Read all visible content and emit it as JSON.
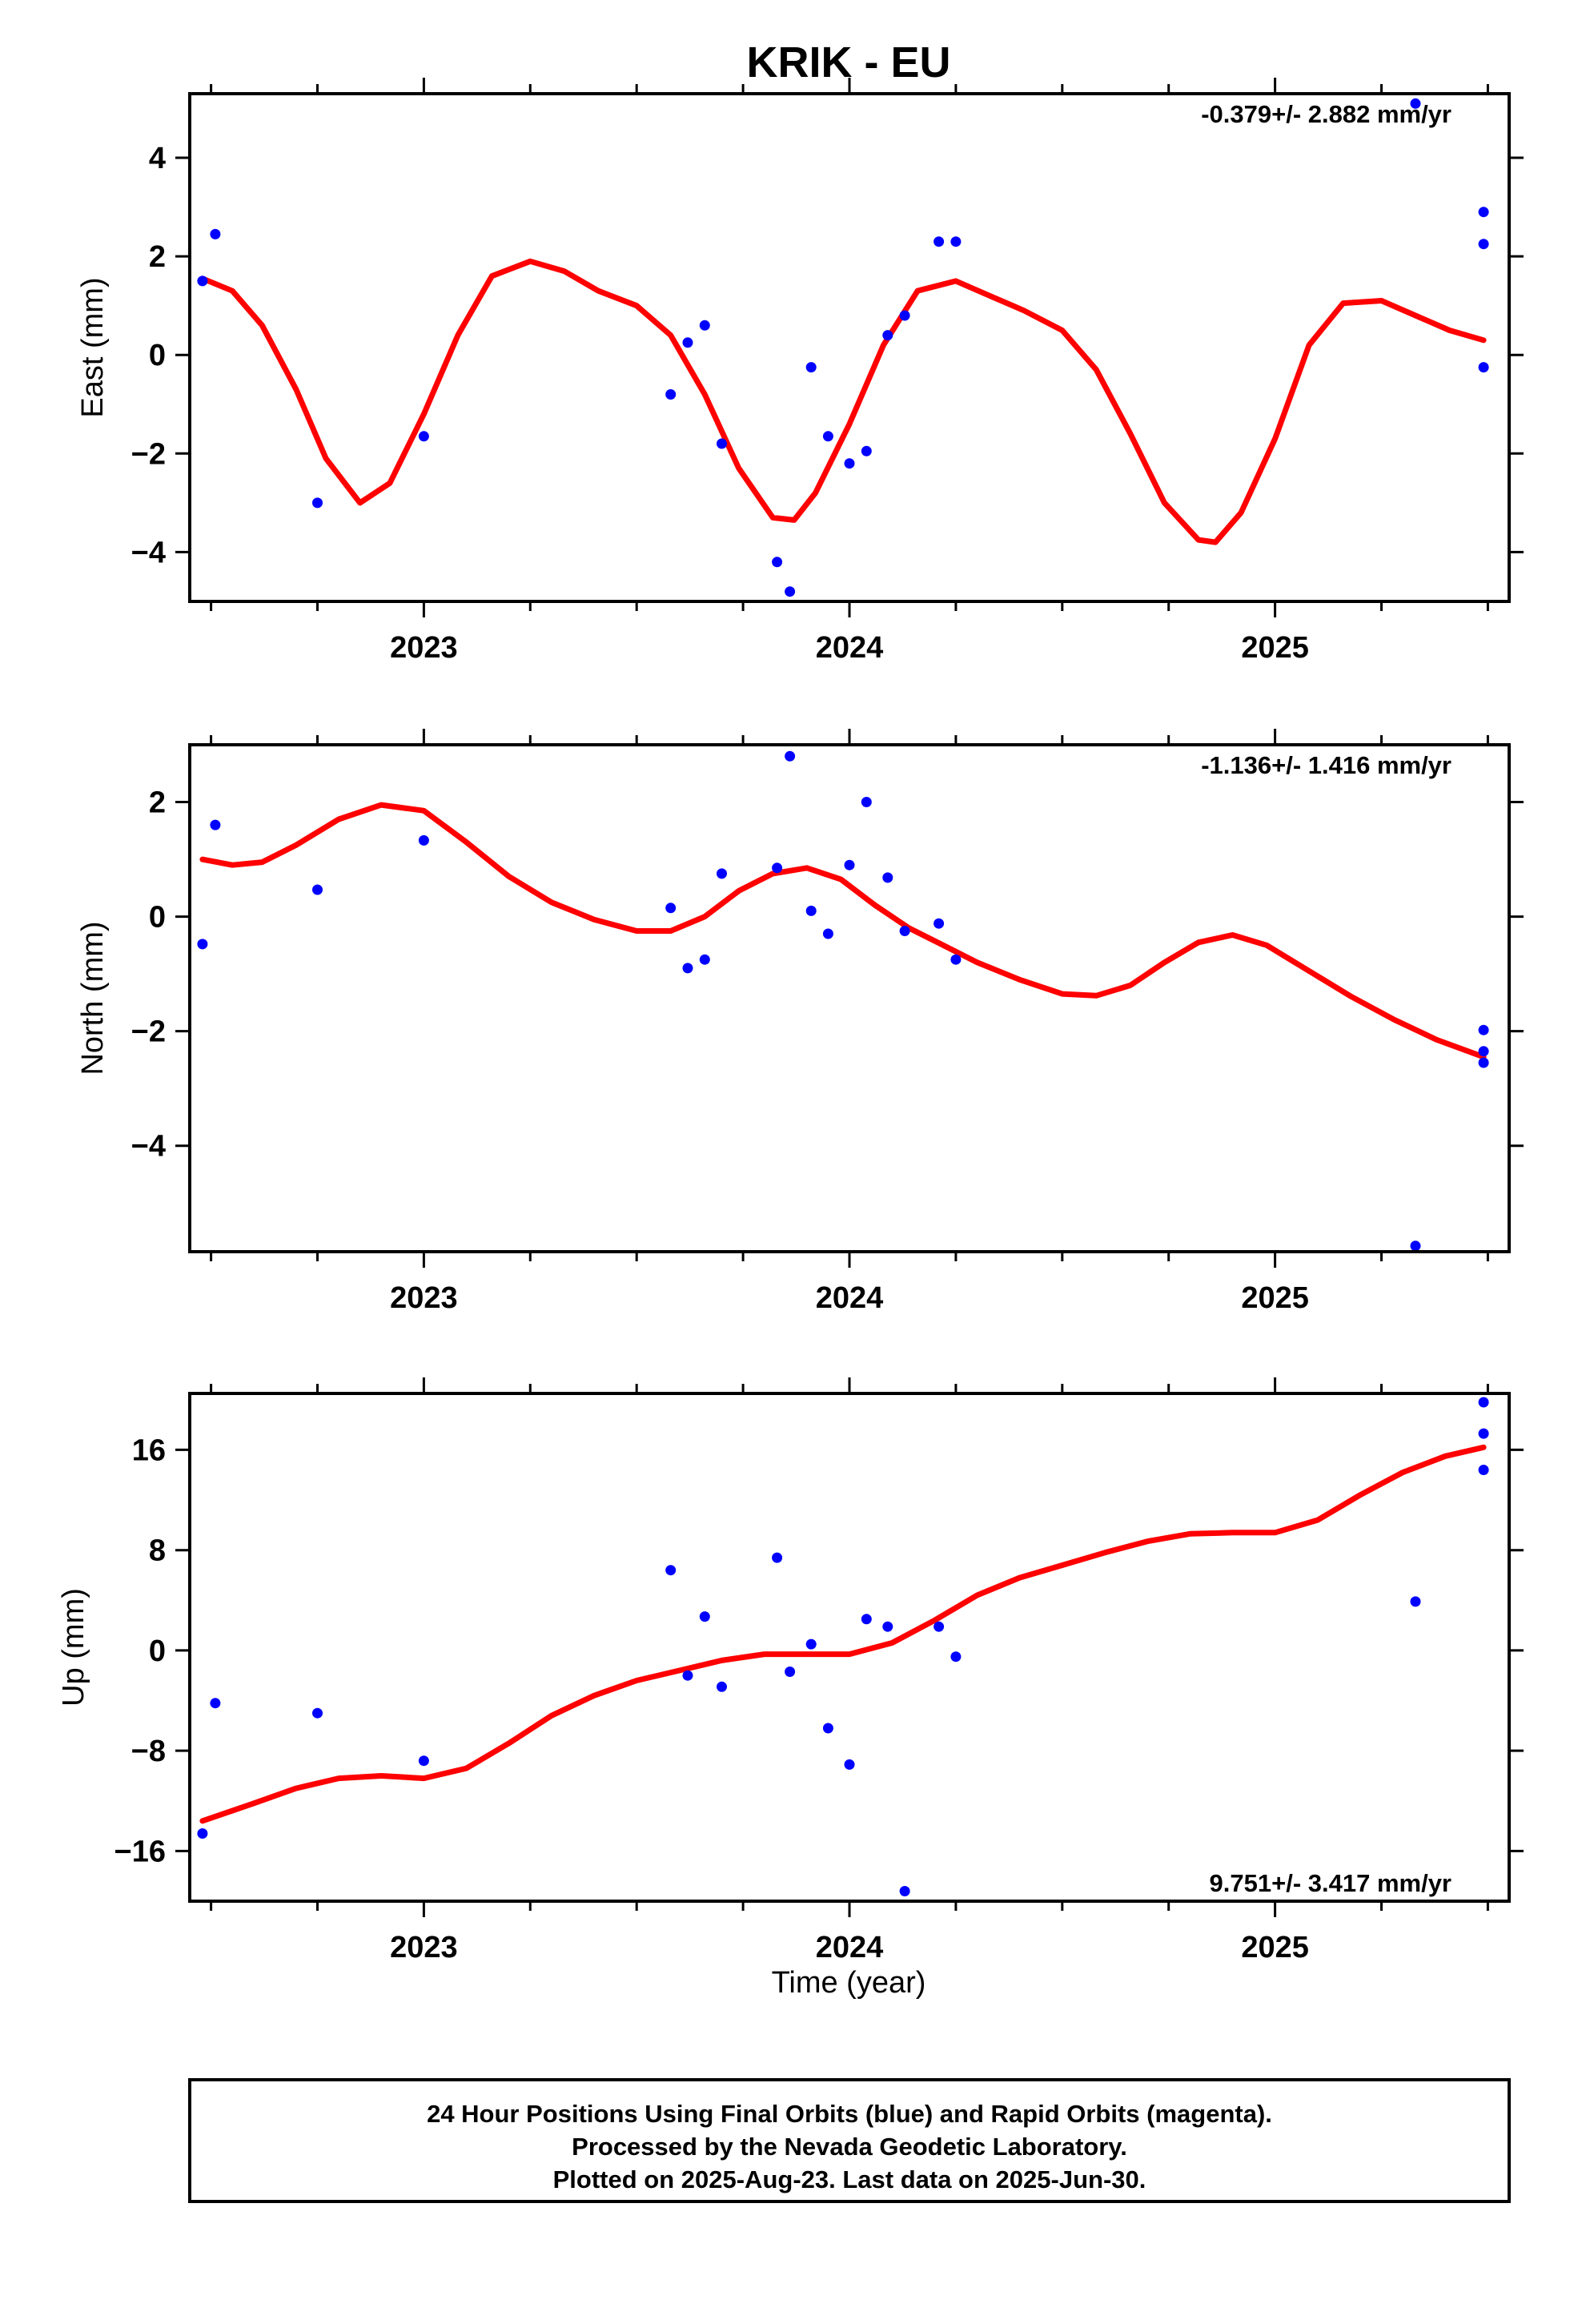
{
  "title": "KRIK - EU",
  "xlabel": "Time (year)",
  "footer": {
    "line1": "24 Hour Positions Using Final Orbits (blue) and Rapid Orbits (magenta).",
    "line2": "Processed by the Nevada Geodetic Laboratory.",
    "line3": "Plotted on 2025-Aug-23. Last data on 2025-Jun-30."
  },
  "colors": {
    "points": "#0000ff",
    "fit": "#ff0000",
    "axes": "#000000"
  },
  "chart_data": [
    {
      "type": "scatter",
      "panel": "east",
      "ylabel": "East (mm)",
      "rate_text": "-0.379+/- 2.882 mm/yr",
      "rate_position": "top-right",
      "xlim": [
        2022.45,
        2025.55
      ],
      "ylim": [
        -5.0,
        5.3
      ],
      "xticks": [
        2023,
        2024,
        2025
      ],
      "yticks": [
        -4,
        -2,
        0,
        2,
        4
      ],
      "points": [
        [
          2022.48,
          1.5
        ],
        [
          2022.51,
          2.45
        ],
        [
          2022.75,
          -3.0
        ],
        [
          2023.0,
          -1.65
        ],
        [
          2023.58,
          -0.8
        ],
        [
          2023.62,
          0.25
        ],
        [
          2023.66,
          0.6
        ],
        [
          2023.7,
          -1.8
        ],
        [
          2023.83,
          -4.2
        ],
        [
          2023.86,
          -4.8
        ],
        [
          2023.91,
          -0.25
        ],
        [
          2023.95,
          -1.65
        ],
        [
          2024.0,
          -2.2
        ],
        [
          2024.04,
          -1.95
        ],
        [
          2024.09,
          0.4
        ],
        [
          2024.13,
          0.8
        ],
        [
          2024.21,
          2.3
        ],
        [
          2024.25,
          2.3
        ],
        [
          2025.33,
          5.1
        ],
        [
          2025.49,
          2.9
        ],
        [
          2025.49,
          2.25
        ],
        [
          2025.49,
          -0.25
        ]
      ],
      "fit": [
        [
          2022.48,
          1.55
        ],
        [
          2022.55,
          1.3
        ],
        [
          2022.62,
          0.6
        ],
        [
          2022.7,
          -0.7
        ],
        [
          2022.77,
          -2.1
        ],
        [
          2022.85,
          -3.0
        ],
        [
          2022.92,
          -2.6
        ],
        [
          2023.0,
          -1.2
        ],
        [
          2023.08,
          0.4
        ],
        [
          2023.16,
          1.6
        ],
        [
          2023.25,
          1.9
        ],
        [
          2023.33,
          1.7
        ],
        [
          2023.41,
          1.3
        ],
        [
          2023.5,
          1.0
        ],
        [
          2023.58,
          0.4
        ],
        [
          2023.66,
          -0.8
        ],
        [
          2023.74,
          -2.3
        ],
        [
          2023.82,
          -3.3
        ],
        [
          2023.87,
          -3.35
        ],
        [
          2023.92,
          -2.8
        ],
        [
          2024.0,
          -1.4
        ],
        [
          2024.08,
          0.2
        ],
        [
          2024.16,
          1.3
        ],
        [
          2024.25,
          1.5
        ],
        [
          2024.33,
          1.2
        ],
        [
          2024.41,
          0.9
        ],
        [
          2024.5,
          0.5
        ],
        [
          2024.58,
          -0.3
        ],
        [
          2024.66,
          -1.6
        ],
        [
          2024.74,
          -3.0
        ],
        [
          2024.82,
          -3.75
        ],
        [
          2024.86,
          -3.8
        ],
        [
          2024.92,
          -3.2
        ],
        [
          2025.0,
          -1.7
        ],
        [
          2025.08,
          0.2
        ],
        [
          2025.16,
          1.05
        ],
        [
          2025.25,
          1.1
        ],
        [
          2025.33,
          0.8
        ],
        [
          2025.41,
          0.5
        ],
        [
          2025.49,
          0.3
        ]
      ]
    },
    {
      "type": "scatter",
      "panel": "north",
      "ylabel": "North (mm)",
      "rate_text": "-1.136+/- 1.416 mm/yr",
      "rate_position": "top-right",
      "xlim": [
        2022.45,
        2025.55
      ],
      "ylim": [
        -5.85,
        3.0
      ],
      "xticks": [
        2023,
        2024,
        2025
      ],
      "yticks": [
        -4,
        -2,
        0,
        2
      ],
      "points": [
        [
          2022.48,
          -0.48
        ],
        [
          2022.51,
          1.6
        ],
        [
          2022.75,
          0.47
        ],
        [
          2023.0,
          1.33
        ],
        [
          2023.58,
          0.15
        ],
        [
          2023.62,
          -0.9
        ],
        [
          2023.66,
          -0.75
        ],
        [
          2023.7,
          0.75
        ],
        [
          2023.83,
          0.85
        ],
        [
          2023.86,
          2.8
        ],
        [
          2023.91,
          0.1
        ],
        [
          2023.95,
          -0.3
        ],
        [
          2024.0,
          0.9
        ],
        [
          2024.04,
          2.0
        ],
        [
          2024.09,
          0.68
        ],
        [
          2024.13,
          -0.25
        ],
        [
          2024.21,
          -0.12
        ],
        [
          2024.25,
          -0.75
        ],
        [
          2025.33,
          -5.75
        ],
        [
          2025.49,
          -1.98
        ],
        [
          2025.49,
          -2.35
        ],
        [
          2025.49,
          -2.55
        ]
      ],
      "fit": [
        [
          2022.48,
          1.0
        ],
        [
          2022.55,
          0.9
        ],
        [
          2022.62,
          0.95
        ],
        [
          2022.7,
          1.25
        ],
        [
          2022.8,
          1.7
        ],
        [
          2022.9,
          1.95
        ],
        [
          2023.0,
          1.85
        ],
        [
          2023.1,
          1.3
        ],
        [
          2023.2,
          0.7
        ],
        [
          2023.3,
          0.25
        ],
        [
          2023.4,
          -0.05
        ],
        [
          2023.5,
          -0.25
        ],
        [
          2023.58,
          -0.25
        ],
        [
          2023.66,
          0.0
        ],
        [
          2023.74,
          0.45
        ],
        [
          2023.82,
          0.75
        ],
        [
          2023.9,
          0.85
        ],
        [
          2023.98,
          0.65
        ],
        [
          2024.06,
          0.2
        ],
        [
          2024.14,
          -0.2
        ],
        [
          2024.22,
          -0.5
        ],
        [
          2024.3,
          -0.8
        ],
        [
          2024.4,
          -1.1
        ],
        [
          2024.5,
          -1.35
        ],
        [
          2024.58,
          -1.38
        ],
        [
          2024.66,
          -1.2
        ],
        [
          2024.74,
          -0.8
        ],
        [
          2024.82,
          -0.45
        ],
        [
          2024.9,
          -0.32
        ],
        [
          2024.98,
          -0.5
        ],
        [
          2025.08,
          -0.95
        ],
        [
          2025.18,
          -1.4
        ],
        [
          2025.28,
          -1.8
        ],
        [
          2025.38,
          -2.15
        ],
        [
          2025.49,
          -2.45
        ]
      ]
    },
    {
      "type": "scatter",
      "panel": "up",
      "ylabel": "Up (mm)",
      "rate_text": "9.751+/- 3.417 mm/yr",
      "rate_position": "bottom-right",
      "xlim": [
        2022.45,
        2025.55
      ],
      "ylim": [
        -20.0,
        20.5
      ],
      "xticks": [
        2023,
        2024,
        2025
      ],
      "yticks": [
        -16,
        -8,
        0,
        8,
        16
      ],
      "points": [
        [
          2022.48,
          -14.6
        ],
        [
          2022.51,
          -4.2
        ],
        [
          2022.75,
          -5.0
        ],
        [
          2023.0,
          -8.8
        ],
        [
          2023.58,
          6.4
        ],
        [
          2023.62,
          -2.0
        ],
        [
          2023.66,
          2.7
        ],
        [
          2023.7,
          -2.9
        ],
        [
          2023.83,
          7.4
        ],
        [
          2023.86,
          -1.7
        ],
        [
          2023.91,
          0.5
        ],
        [
          2023.95,
          -6.2
        ],
        [
          2024.0,
          -9.1
        ],
        [
          2024.04,
          2.5
        ],
        [
          2024.09,
          1.9
        ],
        [
          2024.13,
          -19.2
        ],
        [
          2024.21,
          1.9
        ],
        [
          2024.25,
          -0.5
        ],
        [
          2025.33,
          3.9
        ],
        [
          2025.49,
          19.8
        ],
        [
          2025.49,
          17.3
        ],
        [
          2025.49,
          14.4
        ]
      ],
      "fit": [
        [
          2022.48,
          -13.6
        ],
        [
          2022.6,
          -12.2
        ],
        [
          2022.7,
          -11.0
        ],
        [
          2022.8,
          -10.2
        ],
        [
          2022.9,
          -10.0
        ],
        [
          2023.0,
          -10.2
        ],
        [
          2023.1,
          -9.4
        ],
        [
          2023.2,
          -7.4
        ],
        [
          2023.3,
          -5.2
        ],
        [
          2023.4,
          -3.6
        ],
        [
          2023.5,
          -2.4
        ],
        [
          2023.6,
          -1.6
        ],
        [
          2023.7,
          -0.8
        ],
        [
          2023.8,
          -0.3
        ],
        [
          2023.9,
          -0.3
        ],
        [
          2024.0,
          -0.3
        ],
        [
          2024.1,
          0.6
        ],
        [
          2024.2,
          2.4
        ],
        [
          2024.3,
          4.4
        ],
        [
          2024.4,
          5.8
        ],
        [
          2024.5,
          6.8
        ],
        [
          2024.6,
          7.8
        ],
        [
          2024.7,
          8.7
        ],
        [
          2024.8,
          9.3
        ],
        [
          2024.9,
          9.4
        ],
        [
          2025.0,
          9.4
        ],
        [
          2025.1,
          10.4
        ],
        [
          2025.2,
          12.4
        ],
        [
          2025.3,
          14.2
        ],
        [
          2025.4,
          15.5
        ],
        [
          2025.49,
          16.2
        ]
      ]
    }
  ]
}
